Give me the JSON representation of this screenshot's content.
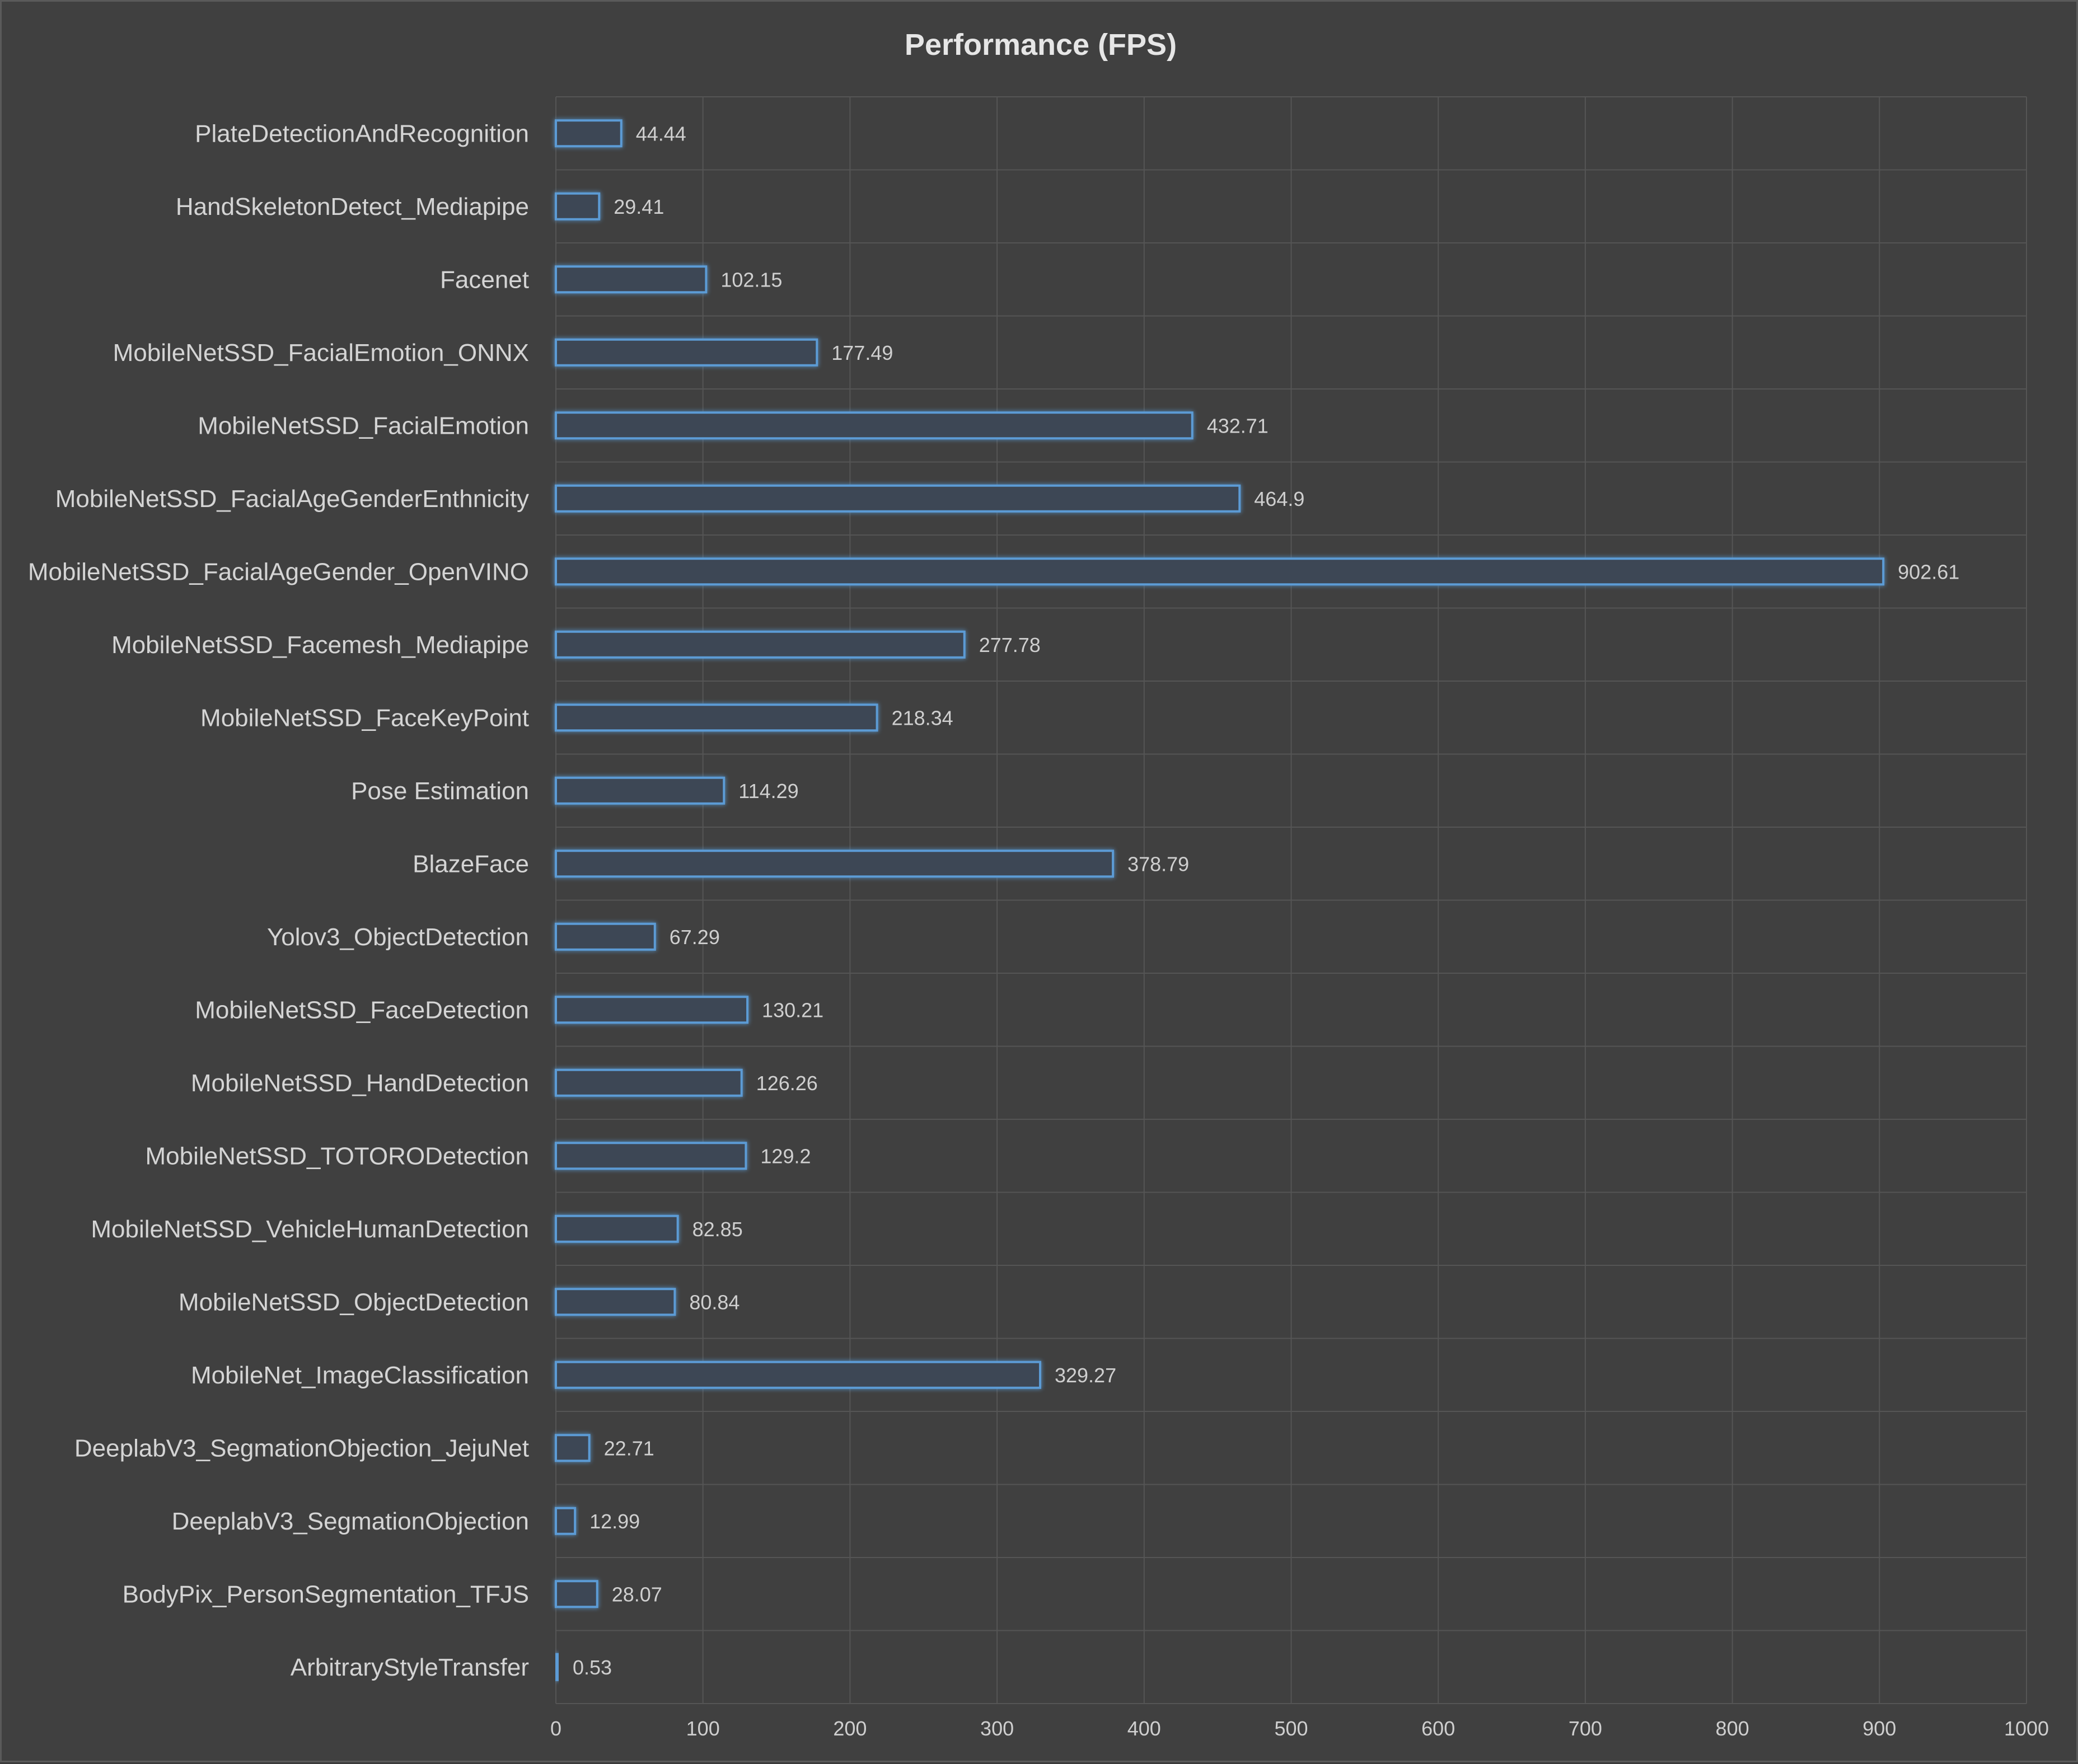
{
  "chart_data": {
    "type": "bar",
    "orientation": "horizontal",
    "title": "Performance (FPS)",
    "xlabel": "",
    "ylabel": "",
    "xlim": [
      0,
      1000
    ],
    "x_ticks": [
      "0",
      "100",
      "200",
      "300",
      "400",
      "500",
      "600",
      "700",
      "800",
      "900",
      "1000"
    ],
    "grid": true,
    "legend": "none",
    "colors": {
      "background": "#404040",
      "bar_fill": "#3d4654",
      "bar_stroke": "#5b9bd5",
      "gridline": "#555555",
      "text": "#d4d4d4"
    },
    "categories": [
      "PlateDetectionAndRecognition",
      "HandSkeletonDetect_Mediapipe",
      "Facenet",
      "MobileNetSSD_FacialEmotion_ONNX",
      "MobileNetSSD_FacialEmotion",
      "MobileNetSSD_FacialAgeGenderEnthnicity",
      "MobileNetSSD_FacialAgeGender_OpenVINO",
      "MobileNetSSD_Facemesh_Mediapipe",
      "MobileNetSSD_FaceKeyPoint",
      "Pose Estimation",
      "BlazeFace",
      "Yolov3_ObjectDetection",
      "MobileNetSSD_FaceDetection",
      "MobileNetSSD_HandDetection",
      "MobileNetSSD_TOTORODetection",
      "MobileNetSSD_VehicleHumanDetection",
      "MobileNetSSD_ObjectDetection",
      "MobileNet_ImageClassification",
      "DeeplabV3_SegmationObjection_JejuNet",
      "DeeplabV3_SegmationObjection",
      "BodyPix_PersonSegmentation_TFJS",
      "ArbitraryStyleTransfer"
    ],
    "values": [
      44.44,
      29.41,
      102.15,
      177.49,
      432.71,
      464.9,
      902.61,
      277.78,
      218.34,
      114.29,
      378.79,
      67.29,
      130.21,
      126.26,
      129.2,
      82.85,
      80.84,
      329.27,
      22.71,
      12.99,
      28.07,
      0.53
    ],
    "value_labels": [
      "44.44",
      "29.41",
      "102.15",
      "177.49",
      "432.71",
      "464.9",
      "902.61",
      "277.78",
      "218.34",
      "114.29",
      "378.79",
      "67.29",
      "130.21",
      "126.26",
      "129.2",
      "82.85",
      "80.84",
      "329.27",
      "22.71",
      "12.99",
      "28.07",
      "0.53"
    ]
  }
}
